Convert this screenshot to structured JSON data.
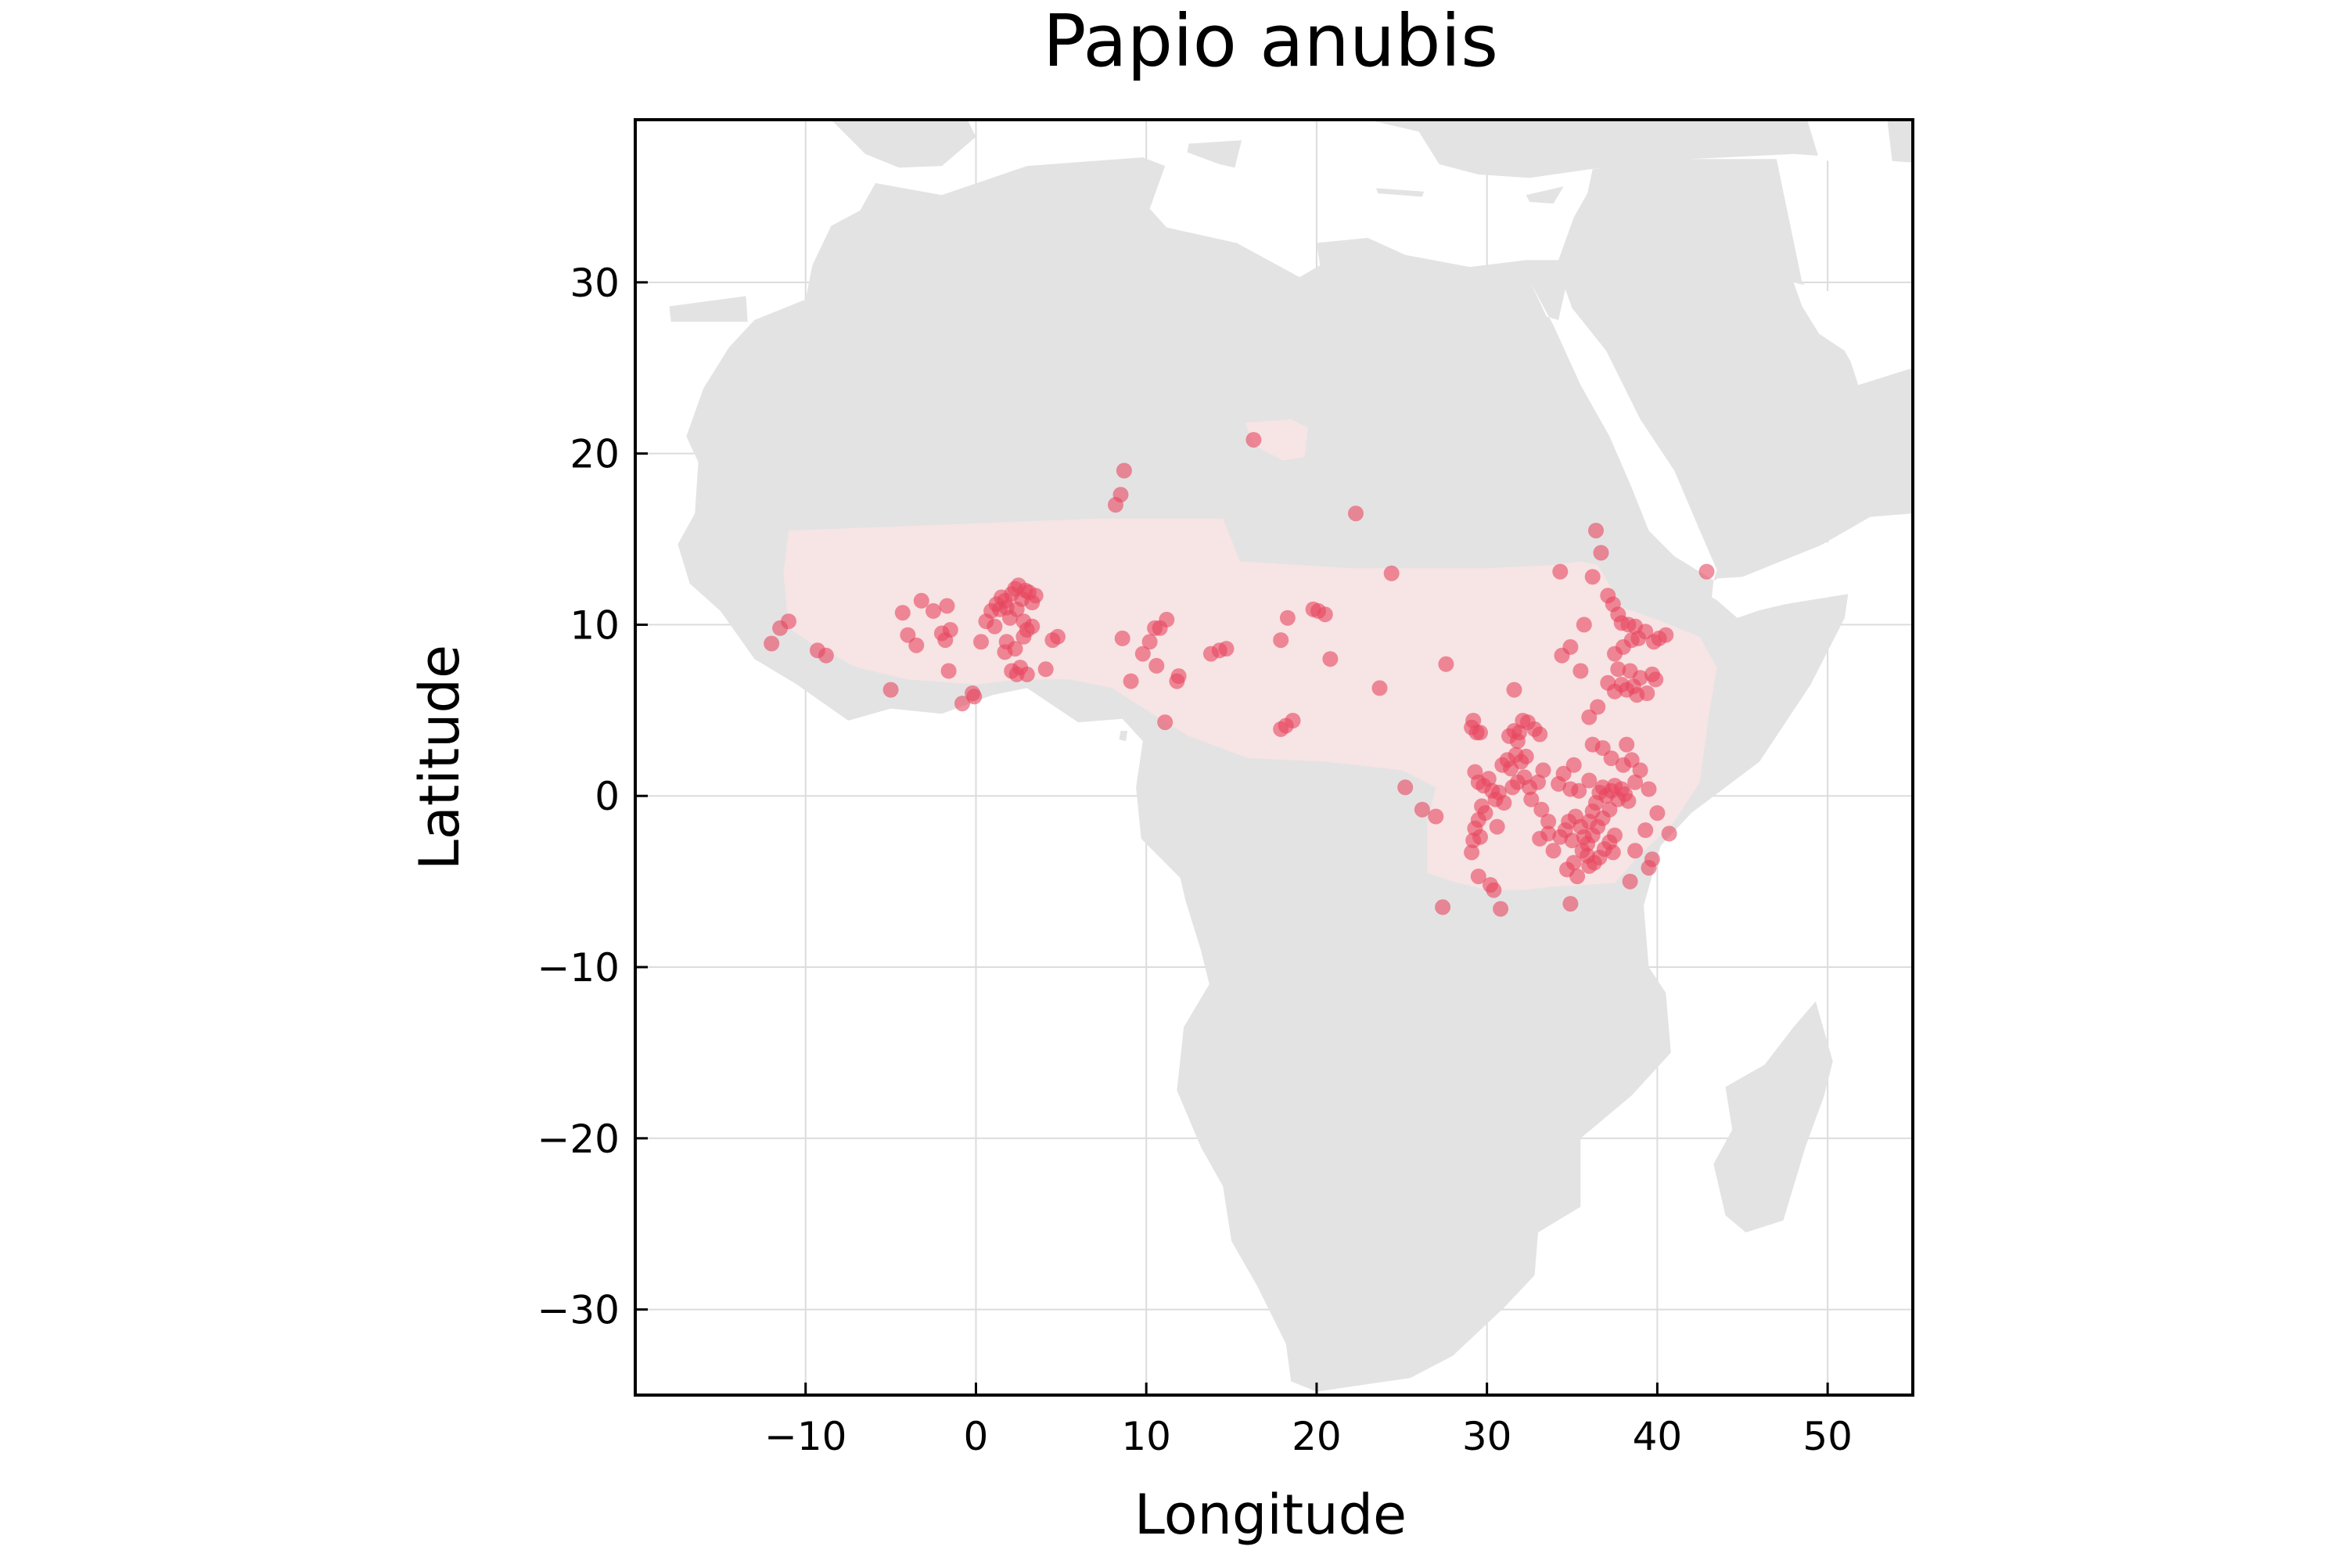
{
  "chart_data": {
    "type": "scatter",
    "title": "Papio anubis",
    "xlabel": "Longitude",
    "ylabel": "Latitude",
    "xlim": [
      -20,
      55
    ],
    "ylim": [
      -35,
      39.5
    ],
    "xticks": [
      -10,
      0,
      10,
      20,
      30,
      40,
      50
    ],
    "yticks": [
      -30,
      -20,
      -10,
      0,
      10,
      20,
      30
    ],
    "xtick_labels": [
      "−10",
      "0",
      "10",
      "20",
      "30",
      "40",
      "50"
    ],
    "ytick_labels": [
      "−30",
      "−20",
      "−10",
      "0",
      "10",
      "20",
      "30"
    ],
    "grid": true,
    "legend": "none",
    "colors": {
      "land": "#e3e3e3",
      "range": "#f7e4e4",
      "points": "#e8465f",
      "grid": "#dcdcdc",
      "frame": "#000000"
    },
    "range_polygons": [
      {
        "name": "main-range",
        "lonlat": [
          [
            -11,
            15.5
          ],
          [
            -3,
            15.8
          ],
          [
            7,
            16.2
          ],
          [
            14.5,
            16.2
          ],
          [
            15.5,
            13.7
          ],
          [
            22,
            13.3
          ],
          [
            30,
            13.3
          ],
          [
            34,
            13.5
          ],
          [
            35.5,
            13.7
          ],
          [
            36.5,
            13.5
          ],
          [
            38,
            11
          ],
          [
            40,
            10.3
          ],
          [
            42.5,
            9.3
          ],
          [
            43.5,
            7.5
          ],
          [
            43,
            4.5
          ],
          [
            42.5,
            0.8
          ],
          [
            41,
            -1.5
          ],
          [
            40,
            -2.5
          ],
          [
            39,
            -3.4
          ],
          [
            37.5,
            -5.1
          ],
          [
            34,
            -5.3
          ],
          [
            32,
            -5.5
          ],
          [
            30,
            -5.5
          ],
          [
            28,
            -5
          ],
          [
            26.5,
            -4.5
          ],
          [
            26.5,
            -1.5
          ],
          [
            27,
            0.5
          ],
          [
            25,
            1.5
          ],
          [
            20.5,
            2
          ],
          [
            16,
            2.2
          ],
          [
            12.5,
            3.5
          ],
          [
            10.5,
            4.7
          ],
          [
            8,
            6.3
          ],
          [
            5.5,
            6.8
          ],
          [
            2.5,
            6.8
          ],
          [
            0,
            6.5
          ],
          [
            -4,
            6.8
          ],
          [
            -7,
            7.5
          ],
          [
            -9.5,
            8.8
          ],
          [
            -11,
            9.8
          ],
          [
            -11.3,
            13
          ]
        ]
      },
      {
        "name": "tibesti-range",
        "lonlat": [
          [
            15.8,
            21.8
          ],
          [
            18.5,
            22
          ],
          [
            19.5,
            21.5
          ],
          [
            19.3,
            19.8
          ],
          [
            18,
            19.6
          ],
          [
            16.3,
            20.5
          ]
        ]
      }
    ],
    "points": [
      [
        -11.5,
        9.8
      ],
      [
        -11.0,
        10.2
      ],
      [
        -12.0,
        8.9
      ],
      [
        -9.3,
        8.5
      ],
      [
        -8.8,
        8.2
      ],
      [
        -5.0,
        6.2
      ],
      [
        -4.3,
        10.7
      ],
      [
        -4.0,
        9.4
      ],
      [
        -3.5,
        8.8
      ],
      [
        -3.2,
        11.4
      ],
      [
        -2.5,
        10.8
      ],
      [
        -2.0,
        9.5
      ],
      [
        -1.8,
        9.1
      ],
      [
        -1.5,
        9.7
      ],
      [
        -1.6,
        7.3
      ],
      [
        -1.7,
        11.1
      ],
      [
        -0.8,
        5.4
      ],
      [
        -0.2,
        6.0
      ],
      [
        -0.1,
        5.8
      ],
      [
        0.3,
        9.0
      ],
      [
        0.6,
        10.2
      ],
      [
        0.9,
        10.8
      ],
      [
        1.2,
        11.2
      ],
      [
        1.5,
        11.6
      ],
      [
        1.8,
        11.0
      ],
      [
        2.1,
        11.8
      ],
      [
        2.3,
        12.1
      ],
      [
        2.5,
        12.3
      ],
      [
        2.7,
        11.5
      ],
      [
        2.9,
        12.0
      ],
      [
        3.1,
        11.9
      ],
      [
        3.3,
        11.3
      ],
      [
        3.5,
        11.7
      ],
      [
        2.0,
        10.4
      ],
      [
        2.4,
        10.9
      ],
      [
        1.7,
        11.4
      ],
      [
        1.4,
        10.9
      ],
      [
        2.8,
        10.2
      ],
      [
        3.0,
        9.7
      ],
      [
        3.3,
        9.9
      ],
      [
        1.8,
        9.0
      ],
      [
        1.7,
        8.4
      ],
      [
        2.3,
        8.6
      ],
      [
        2.6,
        7.5
      ],
      [
        2.1,
        7.3
      ],
      [
        3.0,
        7.1
      ],
      [
        2.4,
        7.1
      ],
      [
        4.1,
        7.4
      ],
      [
        4.5,
        9.1
      ],
      [
        4.8,
        9.3
      ],
      [
        1.1,
        9.9
      ],
      [
        2.8,
        9.3
      ],
      [
        8.2,
        17.0
      ],
      [
        8.5,
        17.6
      ],
      [
        8.7,
        19.0
      ],
      [
        8.6,
        9.2
      ],
      [
        9.1,
        6.7
      ],
      [
        9.8,
        8.3
      ],
      [
        10.2,
        9.0
      ],
      [
        10.5,
        9.8
      ],
      [
        10.8,
        9.8
      ],
      [
        10.6,
        7.6
      ],
      [
        11.2,
        10.3
      ],
      [
        11.1,
        4.3
      ],
      [
        11.9,
        7.0
      ],
      [
        11.8,
        6.7
      ],
      [
        13.8,
        8.3
      ],
      [
        14.3,
        8.5
      ],
      [
        14.7,
        8.6
      ],
      [
        16.3,
        20.8
      ],
      [
        17.9,
        9.1
      ],
      [
        17.9,
        3.9
      ],
      [
        18.2,
        4.1
      ],
      [
        18.3,
        10.4
      ],
      [
        18.6,
        4.4
      ],
      [
        19.8,
        10.9
      ],
      [
        20.1,
        10.8
      ],
      [
        20.5,
        10.6
      ],
      [
        20.8,
        8.0
      ],
      [
        22.3,
        16.5
      ],
      [
        23.7,
        6.3
      ],
      [
        24.4,
        13.0
      ],
      [
        25.2,
        0.5
      ],
      [
        26.2,
        -0.8
      ],
      [
        27.0,
        -1.2
      ],
      [
        27.4,
        -6.5
      ],
      [
        27.6,
        7.7
      ],
      [
        29.1,
        4.0
      ],
      [
        29.2,
        4.4
      ],
      [
        29.4,
        3.7
      ],
      [
        29.6,
        3.7
      ],
      [
        29.3,
        1.4
      ],
      [
        29.5,
        0.8
      ],
      [
        29.8,
        0.6
      ],
      [
        30.1,
        1.0
      ],
      [
        30.3,
        0.3
      ],
      [
        30.5,
        -0.2
      ],
      [
        29.7,
        -0.6
      ],
      [
        29.9,
        -1.0
      ],
      [
        29.5,
        -1.4
      ],
      [
        29.3,
        -1.9
      ],
      [
        29.6,
        -2.4
      ],
      [
        29.2,
        -2.6
      ],
      [
        29.1,
        -3.3
      ],
      [
        29.5,
        -4.7
      ],
      [
        30.2,
        -5.2
      ],
      [
        30.4,
        -5.5
      ],
      [
        30.8,
        -6.6
      ],
      [
        30.6,
        -1.8
      ],
      [
        30.9,
        1.8
      ],
      [
        31.2,
        2.1
      ],
      [
        31.4,
        1.6
      ],
      [
        31.7,
        2.4
      ],
      [
        32.0,
        2.0
      ],
      [
        32.3,
        2.3
      ],
      [
        31.3,
        3.5
      ],
      [
        31.6,
        3.8
      ],
      [
        31.8,
        3.2
      ],
      [
        31.9,
        3.7
      ],
      [
        31.6,
        6.2
      ],
      [
        32.1,
        4.4
      ],
      [
        32.4,
        4.3
      ],
      [
        32.8,
        3.9
      ],
      [
        33.1,
        3.6
      ],
      [
        31.5,
        0.5
      ],
      [
        31.8,
        0.8
      ],
      [
        32.2,
        1.1
      ],
      [
        32.5,
        0.5
      ],
      [
        33.0,
        0.8
      ],
      [
        33.3,
        1.5
      ],
      [
        30.7,
        0.2
      ],
      [
        31.0,
        -0.4
      ],
      [
        32.6,
        -0.2
      ],
      [
        33.2,
        -0.8
      ],
      [
        33.6,
        -1.5
      ],
      [
        33.1,
        -2.5
      ],
      [
        33.6,
        -2.2
      ],
      [
        33.9,
        -3.2
      ],
      [
        34.3,
        -2.4
      ],
      [
        34.6,
        -2.0
      ],
      [
        34.8,
        -1.5
      ],
      [
        35.0,
        -2.6
      ],
      [
        35.2,
        -1.2
      ],
      [
        35.5,
        -1.8
      ],
      [
        35.7,
        -2.4
      ],
      [
        36.0,
        -1.5
      ],
      [
        36.2,
        -0.9
      ],
      [
        36.4,
        -0.4
      ],
      [
        36.6,
        0.2
      ],
      [
        36.8,
        0.5
      ],
      [
        37.0,
        0.0
      ],
      [
        37.3,
        0.3
      ],
      [
        37.5,
        0.6
      ],
      [
        37.7,
        -0.2
      ],
      [
        37.9,
        0.4
      ],
      [
        38.1,
        0.1
      ],
      [
        38.3,
        -0.3
      ],
      [
        37.2,
        -0.8
      ],
      [
        36.8,
        -1.3
      ],
      [
        36.5,
        -1.8
      ],
      [
        36.2,
        -2.3
      ],
      [
        35.9,
        -2.8
      ],
      [
        35.6,
        -3.2
      ],
      [
        35.9,
        -3.5
      ],
      [
        36.3,
        -3.9
      ],
      [
        36.6,
        -3.6
      ],
      [
        36.9,
        -3.1
      ],
      [
        37.2,
        -2.7
      ],
      [
        37.5,
        -2.3
      ],
      [
        35.1,
        -3.9
      ],
      [
        34.7,
        -4.3
      ],
      [
        34.9,
        -6.3
      ],
      [
        35.3,
        -4.7
      ],
      [
        36.0,
        -4.1
      ],
      [
        37.4,
        -3.3
      ],
      [
        34.2,
        0.7
      ],
      [
        34.5,
        1.3
      ],
      [
        35.1,
        1.8
      ],
      [
        34.9,
        0.4
      ],
      [
        35.4,
        0.3
      ],
      [
        36.0,
        0.9
      ],
      [
        36.2,
        3.0
      ],
      [
        36.0,
        4.6
      ],
      [
        36.5,
        5.2
      ],
      [
        34.4,
        8.2
      ],
      [
        34.9,
        8.7
      ],
      [
        35.5,
        7.3
      ],
      [
        35.7,
        10.0
      ],
      [
        36.2,
        12.8
      ],
      [
        36.4,
        15.5
      ],
      [
        36.7,
        14.2
      ],
      [
        37.1,
        11.7
      ],
      [
        37.4,
        11.2
      ],
      [
        37.7,
        10.6
      ],
      [
        37.9,
        10.1
      ],
      [
        38.3,
        10.0
      ],
      [
        38.7,
        9.9
      ],
      [
        37.5,
        8.3
      ],
      [
        38.0,
        8.7
      ],
      [
        38.5,
        9.1
      ],
      [
        38.9,
        9.2
      ],
      [
        39.3,
        9.6
      ],
      [
        39.8,
        9.0
      ],
      [
        40.1,
        9.2
      ],
      [
        40.5,
        9.4
      ],
      [
        37.1,
        6.6
      ],
      [
        37.5,
        6.1
      ],
      [
        37.9,
        6.5
      ],
      [
        38.2,
        6.2
      ],
      [
        38.6,
        6.4
      ],
      [
        39.0,
        6.9
      ],
      [
        39.4,
        6.0
      ],
      [
        39.7,
        7.1
      ],
      [
        39.9,
        6.8
      ],
      [
        38.8,
        5.9
      ],
      [
        37.7,
        7.4
      ],
      [
        38.4,
        7.3
      ],
      [
        36.8,
        2.8
      ],
      [
        37.3,
        2.2
      ],
      [
        38.0,
        1.8
      ],
      [
        38.5,
        2.1
      ],
      [
        39.0,
        1.5
      ],
      [
        38.2,
        3.0
      ],
      [
        39.5,
        0.4
      ],
      [
        38.7,
        0.8
      ],
      [
        40.0,
        -1.0
      ],
      [
        40.7,
        -2.2
      ],
      [
        39.3,
        -2.0
      ],
      [
        39.7,
        -3.7
      ],
      [
        39.5,
        -4.2
      ],
      [
        38.7,
        -3.2
      ],
      [
        38.4,
        -5.0
      ],
      [
        34.3,
        13.1
      ],
      [
        42.9,
        13.1
      ]
    ]
  }
}
